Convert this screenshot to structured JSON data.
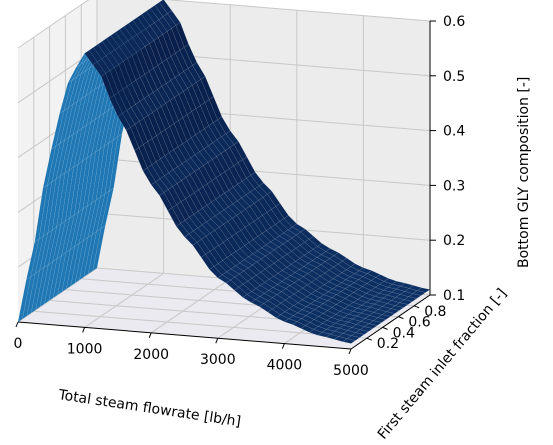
{
  "chart_data": {
    "type": "surface",
    "title": "",
    "xlabel": "Total steam flowrate [lb/h]",
    "ylabel": "First steam inlet fraction [-]",
    "zlabel": "Bottom GLY composition [-]",
    "xlim": [
      0,
      5000
    ],
    "ylim": [
      0,
      1
    ],
    "zlim": [
      0.1,
      0.6
    ],
    "x_ticks": [
      "0",
      "1000",
      "2000",
      "3000",
      "4000",
      "5000"
    ],
    "y_ticks": [
      "0.2",
      "0.4",
      "0.6",
      "0.8"
    ],
    "z_ticks": [
      "0.1",
      "0.2",
      "0.3",
      "0.4",
      "0.5",
      "0.6"
    ],
    "x_tick_values": [
      0,
      1000,
      2000,
      3000,
      4000,
      5000
    ],
    "y_tick_values": [
      0.2,
      0.4,
      0.6,
      0.8
    ],
    "z_tick_values": [
      0.1,
      0.2,
      0.3,
      0.4,
      0.5,
      0.6
    ],
    "grid": true,
    "surface_color": "#1f77b4",
    "profile": {
      "x": [
        0,
        200,
        400,
        600,
        800,
        1000,
        1200,
        1500,
        2000,
        2500,
        3000,
        3500,
        4000,
        4500,
        5000
      ],
      "z": [
        0.1,
        0.22,
        0.36,
        0.48,
        0.56,
        0.6,
        0.57,
        0.49,
        0.37,
        0.28,
        0.21,
        0.17,
        0.14,
        0.12,
        0.11
      ]
    },
    "y_effect": "negligible"
  }
}
